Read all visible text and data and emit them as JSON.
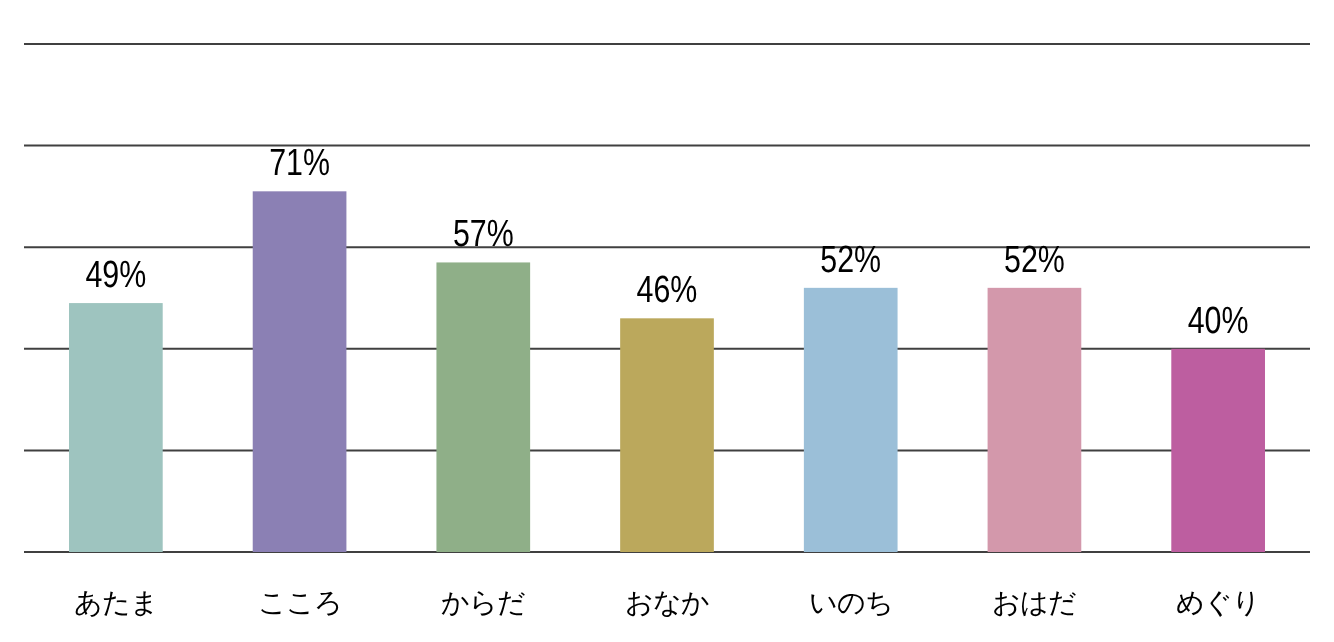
{
  "chart_data": {
    "type": "bar",
    "categories": [
      "あたま",
      "こころ",
      "からだ",
      "おなか",
      "いのち",
      "おはだ",
      "めぐり"
    ],
    "values": [
      49,
      71,
      57,
      46,
      52,
      52,
      40
    ],
    "colors": [
      "#9ec4bf",
      "#8b80b4",
      "#8faf88",
      "#bba85c",
      "#9bbfd8",
      "#d398ab",
      "#bd5ea0"
    ],
    "ylim": [
      0,
      100
    ],
    "yticks": [
      {
        "value": 0,
        "label": null
      },
      {
        "value": 20,
        "label": null
      },
      {
        "value": 40,
        "label": null
      },
      {
        "value": 60,
        "label": null
      },
      {
        "value": 80,
        "label": null
      },
      {
        "value": 100,
        "label": null
      }
    ],
    "grid": "y",
    "tick_labels": "x",
    "value_labels": [
      "49%",
      "71%",
      "57%",
      "46%",
      "52%",
      "52%",
      "40%"
    ]
  }
}
